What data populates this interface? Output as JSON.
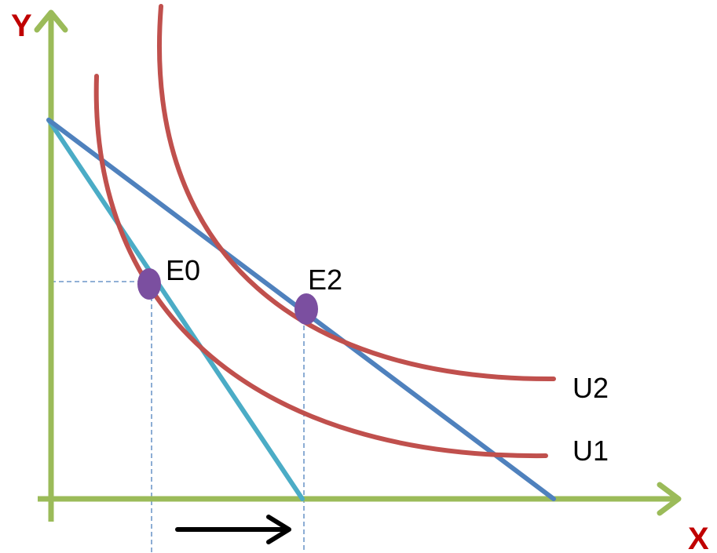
{
  "diagram": {
    "axes": {
      "x_label": "X",
      "y_label": "Y"
    },
    "curves": {
      "u1": "U1",
      "u2": "U2"
    },
    "points": {
      "e0": "E0",
      "e2": "E2"
    }
  },
  "colors": {
    "axis": "#9BBB59",
    "axis_label": "#C00000",
    "indifference_curve": "#C0504D",
    "budget_line_original": "#4BACC6",
    "budget_line_new": "#4F81BD",
    "equilibrium_point": "#7B4FA0",
    "guide_line": "#4F81BD",
    "shift_arrow": "#000000"
  }
}
